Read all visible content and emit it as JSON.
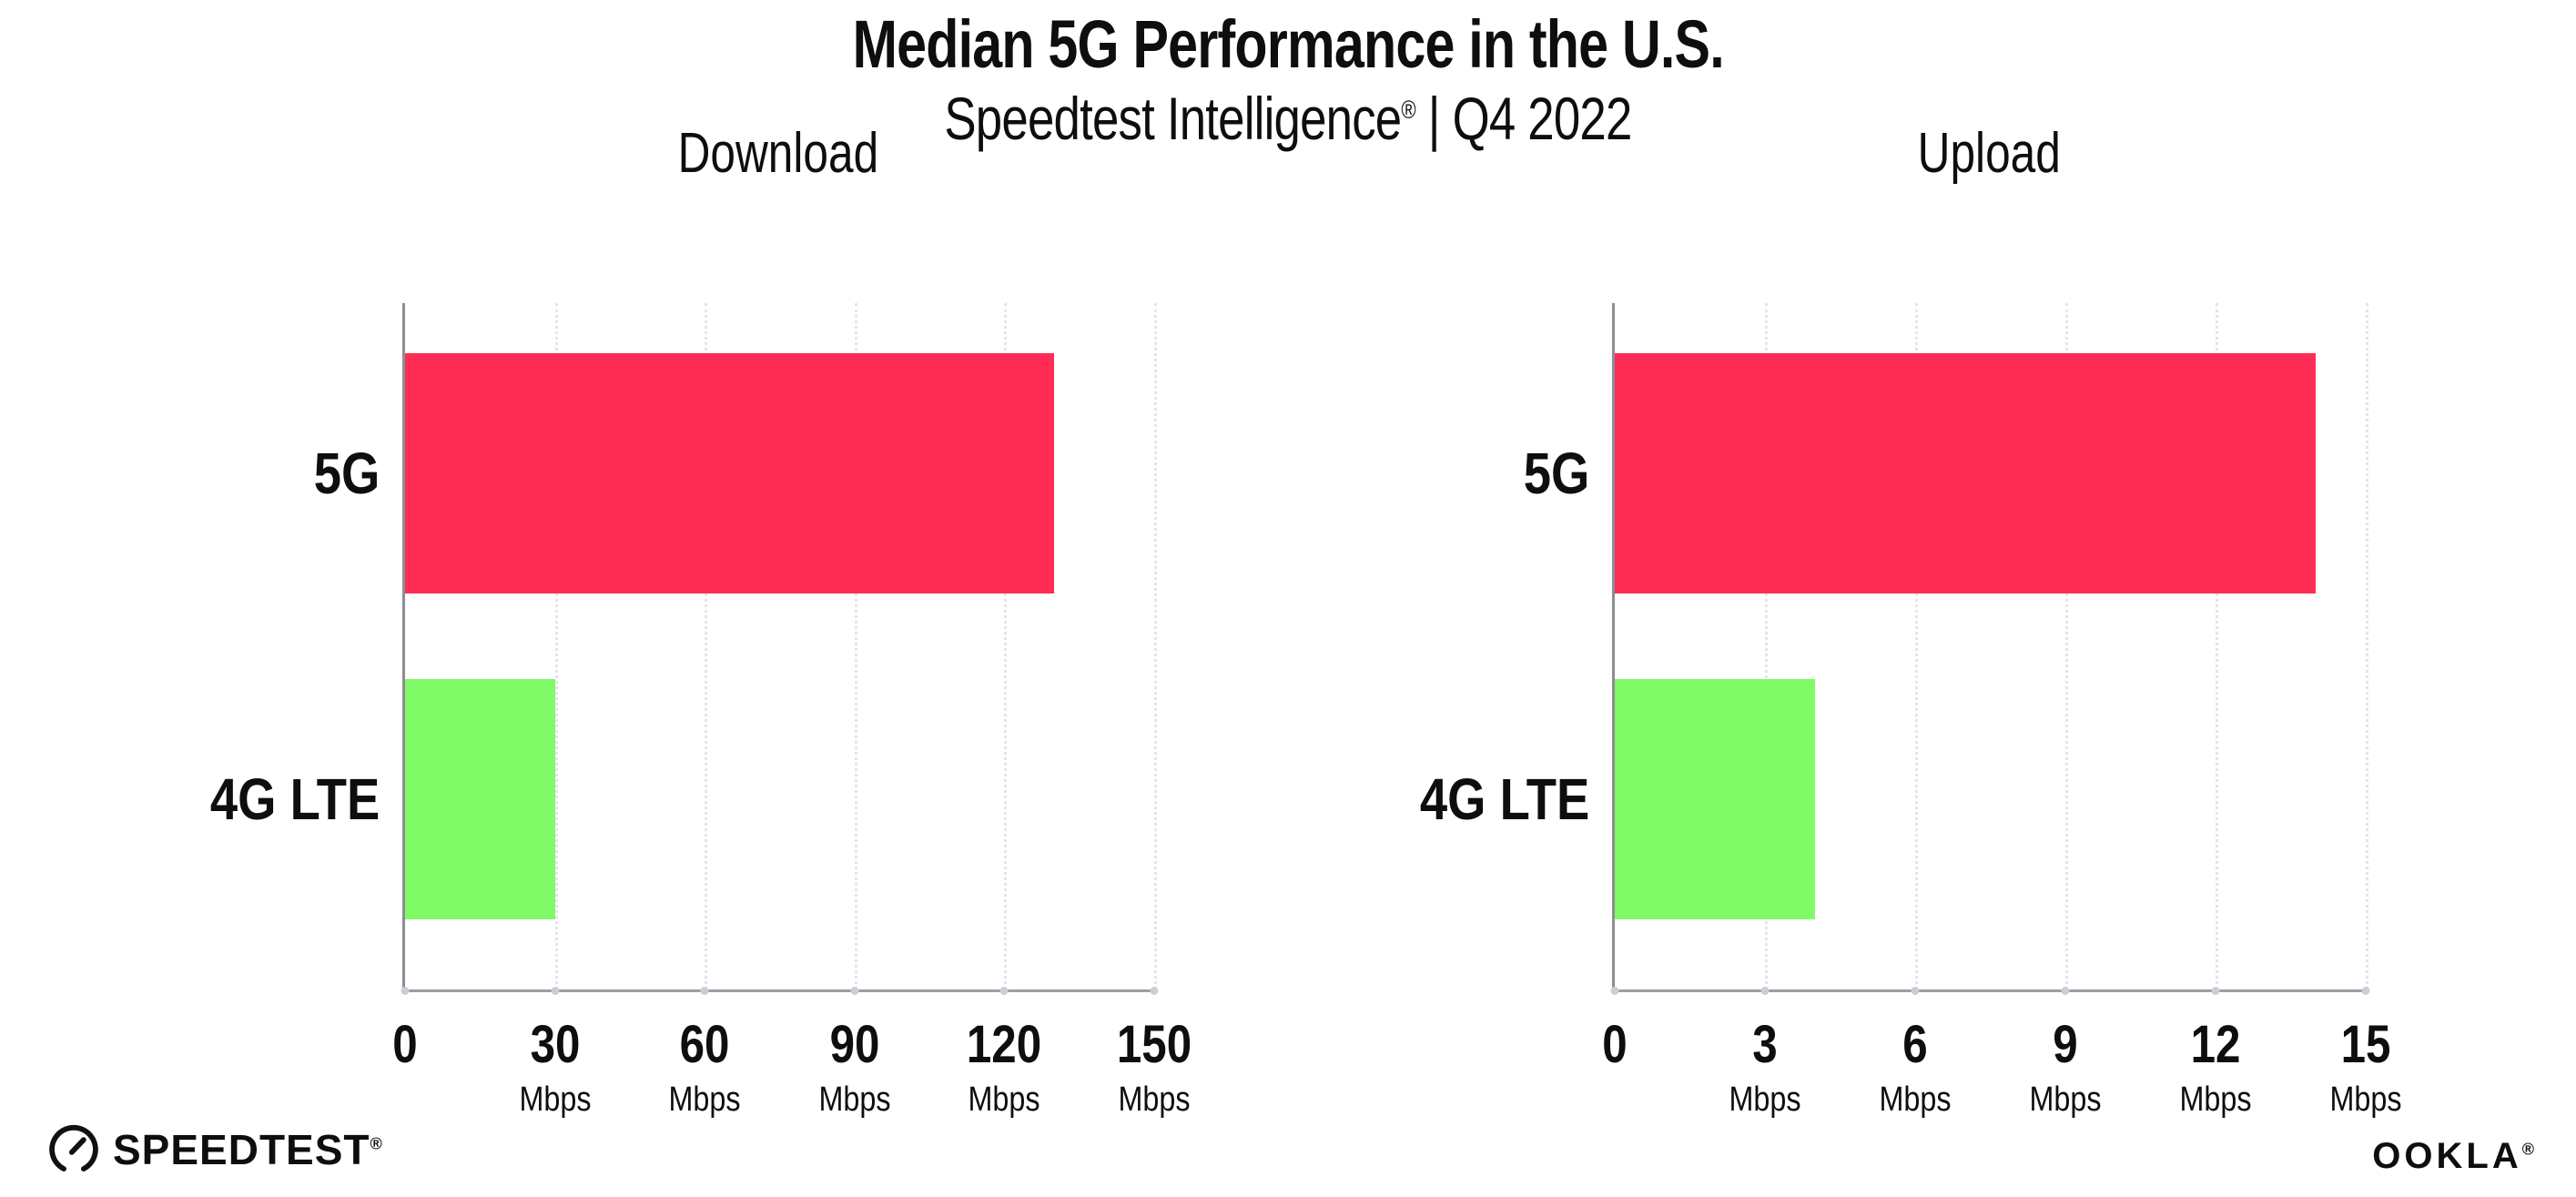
{
  "header": {
    "title": "Median 5G Performance in the U.S.",
    "subtitle_brand": "Speedtest Intelligence",
    "subtitle_reg": "®",
    "subtitle_rest": " | Q4 2022"
  },
  "chart_data": [
    {
      "type": "bar",
      "orientation": "horizontal",
      "title": "Download",
      "categories": [
        "5G",
        "4G LTE"
      ],
      "values": [
        130,
        30
      ],
      "unit": "Mbps",
      "xlim": [
        0,
        150
      ],
      "xticks": [
        0,
        30,
        60,
        90,
        120,
        150
      ],
      "bar_colors": [
        "#FF2D55",
        "#80FA66"
      ],
      "grid": "dotted-vertical",
      "legend": "none"
    },
    {
      "type": "bar",
      "orientation": "horizontal",
      "title": "Upload",
      "categories": [
        "5G",
        "4G LTE"
      ],
      "values": [
        14,
        4
      ],
      "unit": "Mbps",
      "xlim": [
        0,
        15
      ],
      "xticks": [
        0,
        3,
        6,
        9,
        12,
        15
      ],
      "bar_colors": [
        "#FF2D55",
        "#80FA66"
      ],
      "grid": "dotted-vertical",
      "legend": "none"
    }
  ],
  "footer": {
    "speedtest_label": "SPEEDTEST",
    "speedtest_reg": "®",
    "ookla_label": "OOKLA",
    "ookla_reg": "®"
  },
  "colors": {
    "bar_5g": "#FF2D55",
    "bar_4g_lte": "#80FA66",
    "axis_line": "#9d9da3",
    "gridline": "#e4e4ee",
    "text": "#0e0e0e",
    "background": "#ffffff"
  }
}
